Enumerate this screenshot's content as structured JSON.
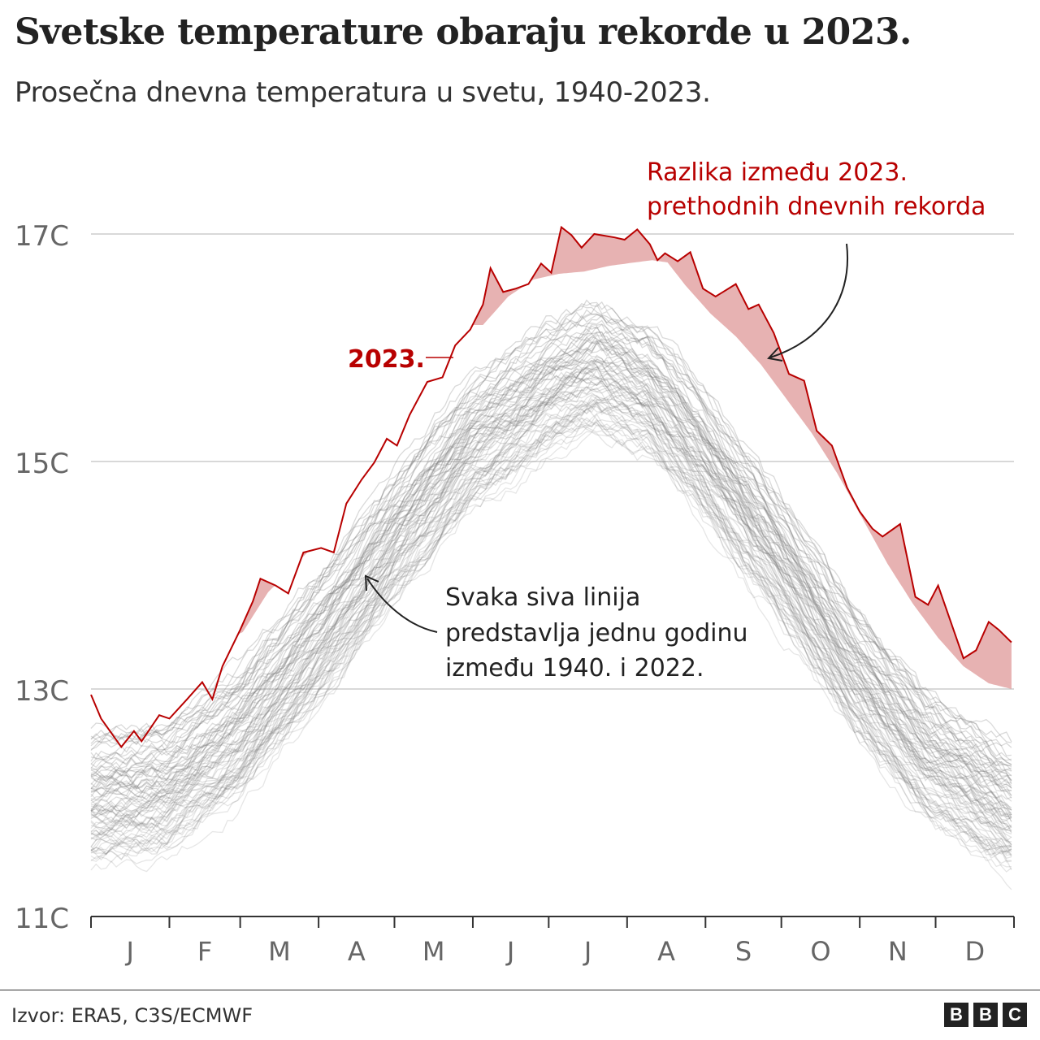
{
  "header": {
    "title": "Svetske temperature obaraju rekorde u 2023.",
    "subtitle": "Prosečna dnevna temperatura u svetu, 1940-2023."
  },
  "chart_data": {
    "type": "line",
    "title": "Svetske temperature obaraju rekorde u 2023.",
    "subtitle": "Prosečna dnevna temperatura u svetu, 1940-2023.",
    "xlabel": "",
    "ylabel": "",
    "x_unit": "day of year",
    "xlim": [
      0,
      365
    ],
    "ylim": [
      11,
      17.5
    ],
    "y_ticks": [
      {
        "value": 11,
        "label": "11C"
      },
      {
        "value": 13,
        "label": "13C"
      },
      {
        "value": 15,
        "label": "15C"
      },
      {
        "value": 17,
        "label": "17C"
      }
    ],
    "x_ticks": [
      "J",
      "F",
      "M",
      "A",
      "M",
      "J",
      "J",
      "A",
      "S",
      "O",
      "N",
      "D"
    ],
    "grid": "horizontal",
    "colors": {
      "highlight": "#b80000",
      "band": "#e3a4a4",
      "gray": "#888888"
    },
    "series_2023": {
      "name": "2023.",
      "day": [
        0,
        4,
        12,
        17,
        20,
        27,
        31,
        38,
        44,
        48,
        52,
        59,
        64,
        67,
        73,
        78,
        84,
        91,
        96,
        101,
        107,
        112,
        117,
        121,
        126,
        133,
        139,
        144,
        150,
        155,
        158,
        163,
        168,
        173,
        178,
        182,
        186,
        190,
        194,
        199,
        207,
        211,
        216,
        221,
        224,
        227,
        232,
        237,
        242,
        247,
        255,
        260,
        264,
        270,
        276,
        282,
        287,
        293,
        299,
        304,
        309,
        313,
        320,
        326,
        331,
        335,
        340,
        345,
        350,
        355,
        359,
        364
      ],
      "temp": [
        12.95,
        12.74,
        12.49,
        12.63,
        12.54,
        12.77,
        12.74,
        12.91,
        13.06,
        12.91,
        13.2,
        13.52,
        13.77,
        13.97,
        13.91,
        13.84,
        14.2,
        14.24,
        14.2,
        14.63,
        14.84,
        14.99,
        15.2,
        15.14,
        15.41,
        15.7,
        15.74,
        16.02,
        16.16,
        16.38,
        16.7,
        16.49,
        16.52,
        16.56,
        16.74,
        16.66,
        17.06,
        16.99,
        16.88,
        17.0,
        16.97,
        16.95,
        17.04,
        16.91,
        16.77,
        16.83,
        16.76,
        16.84,
        16.52,
        16.45,
        16.56,
        16.34,
        16.38,
        16.13,
        15.77,
        15.71,
        15.27,
        15.14,
        14.77,
        14.56,
        14.41,
        14.34,
        14.45,
        13.81,
        13.74,
        13.91,
        13.59,
        13.27,
        13.34,
        13.59,
        13.52,
        13.41
      ]
    },
    "previous_record": {
      "day": [
        0,
        30,
        60,
        70,
        90,
        120,
        150,
        155,
        165,
        175,
        185,
        195,
        205,
        215,
        222,
        228,
        235,
        245,
        255,
        265,
        275,
        285,
        295,
        305,
        315,
        325,
        335,
        345,
        355,
        364
      ],
      "temp": [
        13.2,
        13.2,
        13.5,
        13.85,
        14.3,
        15.3,
        16.2,
        16.2,
        16.45,
        16.6,
        16.65,
        16.67,
        16.72,
        16.75,
        16.77,
        16.75,
        16.55,
        16.3,
        16.1,
        15.85,
        15.55,
        15.25,
        14.9,
        14.5,
        14.1,
        13.75,
        13.45,
        13.2,
        13.05,
        13.0
      ]
    },
    "background_years": [
      1940,
      2022
    ],
    "background_climatology": {
      "day": [
        0,
        30,
        60,
        90,
        120,
        150,
        180,
        200,
        220,
        240,
        270,
        300,
        330,
        364
      ],
      "temp": [
        12.0,
        12.1,
        12.6,
        13.4,
        14.3,
        15.1,
        15.6,
        15.8,
        15.6,
        15.1,
        14.2,
        13.2,
        12.4,
        11.9
      ]
    },
    "annotations": {
      "label_2023": "2023.",
      "band_note_line1": "Razlika između 2023.",
      "band_note_line2": "prethodnih dnevnih rekorda",
      "gray_note_line1": "Svaka siva linija",
      "gray_note_line2": "predstavlja jednu godinu",
      "gray_note_line3": "između 1940. i 2022."
    }
  },
  "footer": {
    "source": "Izvor: ERA5, C3S/ECMWF",
    "logo": [
      "B",
      "B",
      "C"
    ]
  }
}
